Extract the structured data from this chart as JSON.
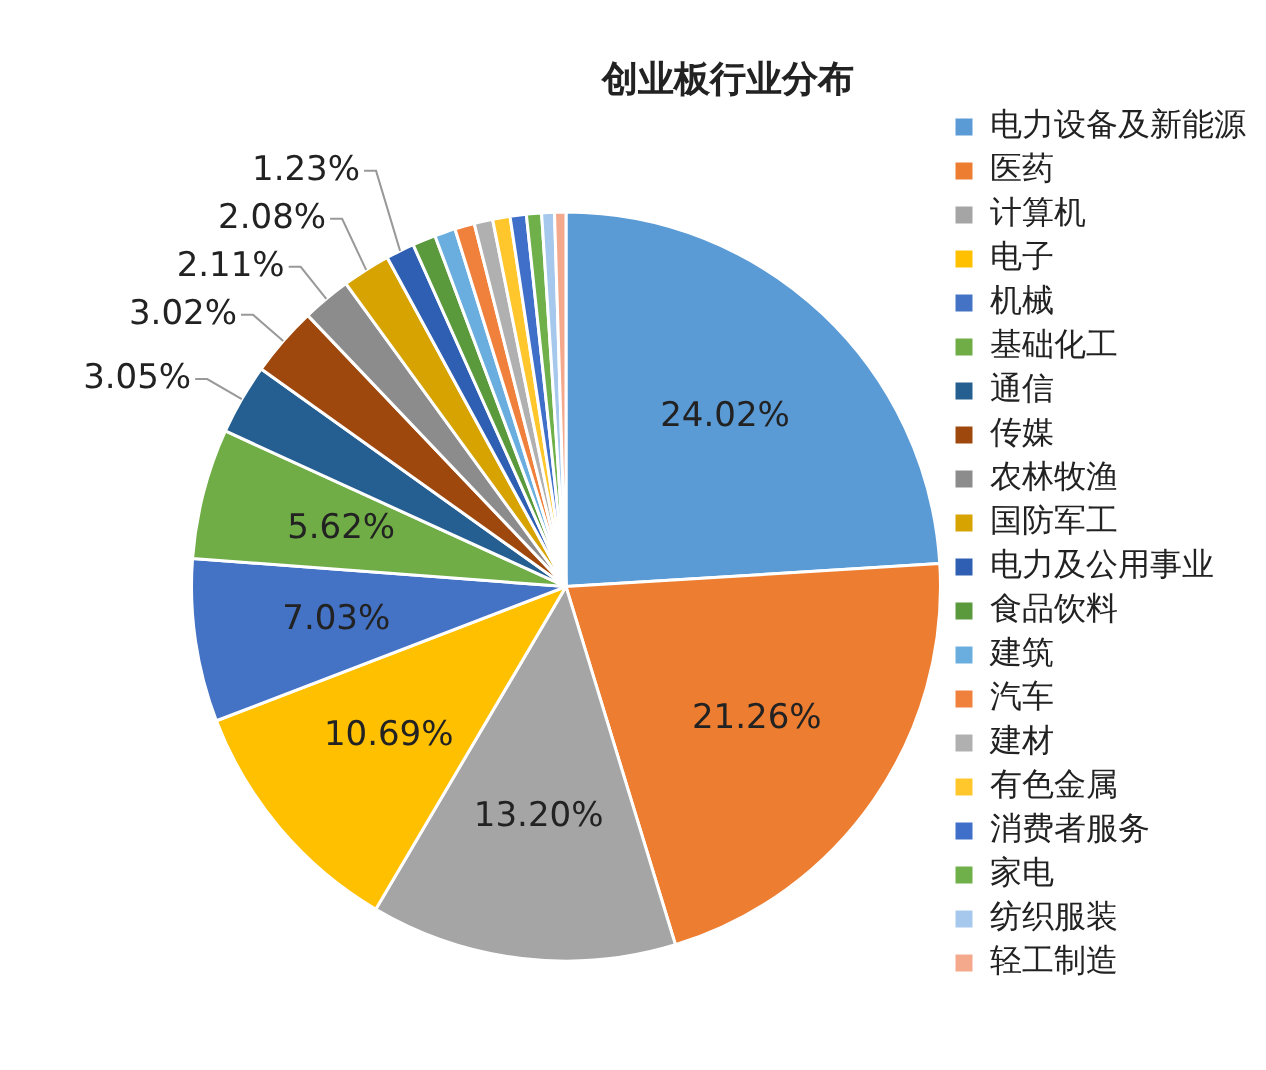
{
  "chart_data": {
    "type": "pie",
    "title": "创业板行业分布",
    "categories": [
      "电力设备及新能源",
      "医药",
      "计算机",
      "电子",
      "机械",
      "基础化工",
      "通信",
      "传媒",
      "农林牧渔",
      "国防军工",
      "电力及公用事业",
      "食品饮料",
      "建筑",
      "汽车",
      "建材",
      "有色金属",
      "消费者服务",
      "家电",
      "纺织服装",
      "轻工制造"
    ],
    "values": [
      24.02,
      21.26,
      13.2,
      10.69,
      7.03,
      5.62,
      3.05,
      3.02,
      2.11,
      2.08,
      1.23,
      1.0,
      0.9,
      0.85,
      0.8,
      0.75,
      0.7,
      0.65,
      0.55,
      0.49
    ],
    "value_labels": [
      "24.02%",
      "21.26%",
      "13.20%",
      "10.69%",
      "7.03%",
      "5.62%",
      "3.05%",
      "3.02%",
      "2.11%",
      "2.08%",
      "1.23%",
      null,
      null,
      null,
      null,
      null,
      null,
      null,
      null,
      null
    ],
    "colors": [
      "#5b9bd5",
      "#ed7d31",
      "#a5a5a5",
      "#ffc000",
      "#4472c4",
      "#70ad47",
      "#255e91",
      "#9e480e",
      "#8c8c8c",
      "#d6a300",
      "#2f5fb3",
      "#5a9a3c",
      "#6aaee0",
      "#f0813d",
      "#b0b0b0",
      "#ffc72c",
      "#3f6fc8",
      "#6fb04a",
      "#a6c8ec",
      "#f4a98c"
    ],
    "legend": "right"
  }
}
